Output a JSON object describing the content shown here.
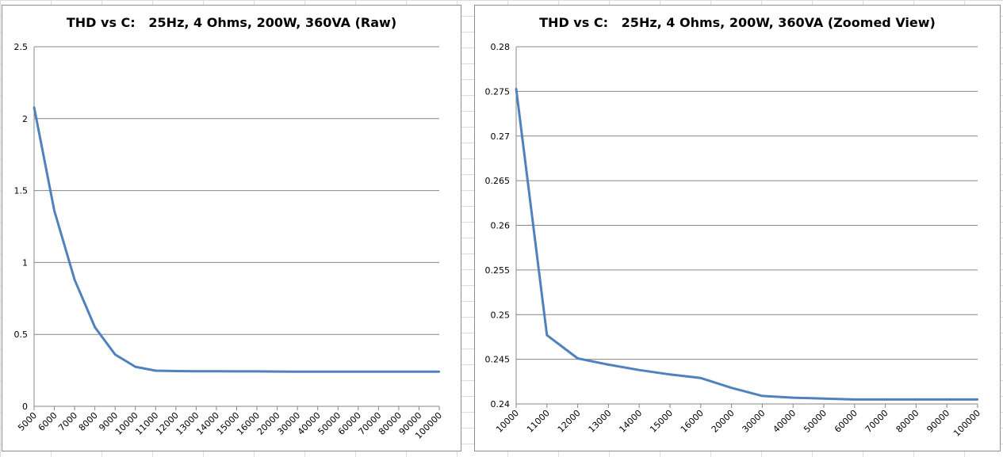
{
  "chart_data": [
    {
      "type": "line",
      "title": "THD vs C:   25Hz, 4 Ohms, 200W, 360VA (Raw)",
      "xlabel": "",
      "ylabel": "",
      "categories": [
        "5000",
        "6000",
        "7000",
        "8000",
        "9000",
        "10000",
        "11000",
        "12000",
        "13000",
        "14000",
        "15000",
        "16000",
        "20000",
        "30000",
        "40000",
        "50000",
        "60000",
        "70000",
        "80000",
        "90000",
        "100000"
      ],
      "series": [
        {
          "name": "",
          "values": [
            2.08,
            1.36,
            0.88,
            0.55,
            0.36,
            0.275,
            0.248,
            0.245,
            0.244,
            0.244,
            0.243,
            0.243,
            0.242,
            0.241,
            0.241,
            0.2405,
            0.2405,
            0.2405,
            0.2405,
            0.2405,
            0.2405
          ]
        }
      ],
      "ylim": [
        0,
        2.5
      ],
      "yticks": [
        "0",
        "0.5",
        "1",
        "1.5",
        "2",
        "2.5"
      ],
      "ytick_values": [
        0,
        0.5,
        1,
        1.5,
        2,
        2.5
      ],
      "grid": true,
      "line_color": "#4f81bd"
    },
    {
      "type": "line",
      "title": "THD vs C:   25Hz, 4 Ohms, 200W, 360VA (Zoomed View)",
      "xlabel": "",
      "ylabel": "",
      "categories": [
        "10000",
        "11000",
        "12000",
        "13000",
        "14000",
        "15000",
        "16000",
        "20000",
        "30000",
        "40000",
        "50000",
        "60000",
        "70000",
        "80000",
        "90000",
        "100000"
      ],
      "series": [
        {
          "name": "",
          "values": [
            0.2753,
            0.2477,
            0.2451,
            0.2444,
            0.2438,
            0.2433,
            0.2429,
            0.2418,
            0.2409,
            0.2407,
            0.2406,
            0.2405,
            0.2405,
            0.2405,
            0.2405,
            0.2405
          ]
        }
      ],
      "ylim": [
        0.24,
        0.28
      ],
      "yticks": [
        "0.24",
        "0.245",
        "0.25",
        "0.255",
        "0.26",
        "0.265",
        "0.27",
        "0.275",
        "0.28"
      ],
      "ytick_values": [
        0.24,
        0.245,
        0.25,
        0.255,
        0.26,
        0.265,
        0.27,
        0.275,
        0.28
      ],
      "grid": true,
      "line_color": "#4f81bd"
    }
  ]
}
